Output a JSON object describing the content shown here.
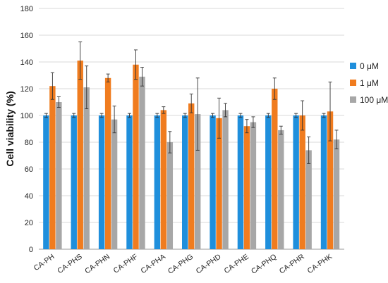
{
  "chart_data": {
    "type": "bar",
    "title": "",
    "xlabel": "",
    "ylabel": "Cell viability (%)",
    "ylim": [
      0,
      180
    ],
    "yticks": [
      0,
      20,
      40,
      60,
      80,
      100,
      120,
      140,
      160,
      180
    ],
    "grid": "horizontal",
    "legend_position": "right",
    "categories": [
      "CA-PH",
      "CA-PHS",
      "CA-PHN",
      "CA-PHF",
      "CA-PHA",
      "CA-PHG",
      "CA-PHD",
      "CA-PHE",
      "CA-PHQ",
      "CA-PHR",
      "CA-PHK"
    ],
    "series": [
      {
        "name": "0 μM",
        "color": "#1f8fdc",
        "values": [
          100,
          100,
          100,
          100,
          100,
          100,
          100,
          100,
          100,
          100,
          100
        ],
        "errors": [
          1.5,
          1.5,
          1.5,
          1.5,
          1.5,
          1.5,
          1.5,
          1.5,
          1.5,
          1.5,
          1.5
        ]
      },
      {
        "name": "1 μM",
        "color": "#f07c1f",
        "values": [
          122,
          141,
          128,
          138,
          104,
          109,
          98,
          92,
          120,
          100,
          103
        ],
        "errors": [
          10,
          14,
          3,
          11,
          2.5,
          7,
          15,
          5,
          8,
          11,
          22
        ]
      },
      {
        "name": "100 μM",
        "color": "#a7a7a7",
        "values": [
          110,
          121,
          97,
          129,
          80,
          101,
          104,
          95,
          89,
          74,
          82
        ],
        "errors": [
          4,
          16,
          10,
          7,
          8,
          27,
          5,
          4,
          3,
          10,
          7
        ]
      }
    ]
  }
}
